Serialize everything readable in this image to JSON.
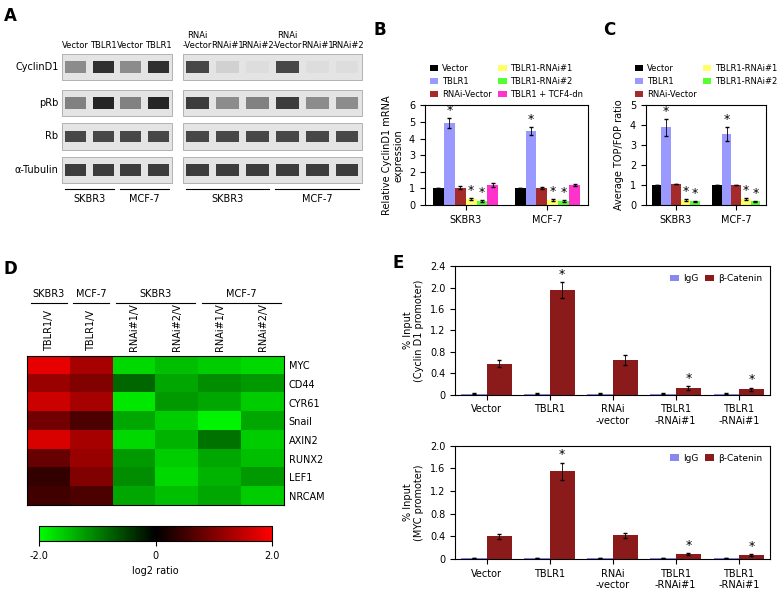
{
  "western_blot": {
    "panel": "A",
    "rows": [
      "CyclinD1",
      "pRb",
      "Rb",
      "α-Tubulin"
    ],
    "blots": [
      {
        "lanes": [
          "Vector",
          "TBLR1",
          "Vector",
          "TBLR1"
        ],
        "cell_lines": [
          "SKBR3",
          "MCF-7"
        ],
        "intensity": [
          [
            0.5,
            0.9,
            0.5,
            0.9
          ],
          [
            0.55,
            0.95,
            0.55,
            0.95
          ],
          [
            0.8,
            0.8,
            0.8,
            0.8
          ],
          [
            0.85,
            0.85,
            0.85,
            0.85
          ]
        ]
      },
      {
        "lanes": [
          "RNAi\n-Vector",
          "RNAi#1",
          "RNAi#2",
          "RNAi\n-Vector",
          "RNAi#1",
          "RNAi#2"
        ],
        "cell_lines": [
          "SKBR3",
          "MCF-7"
        ],
        "intensity": [
          [
            0.8,
            0.2,
            0.15,
            0.8,
            0.15,
            0.15
          ],
          [
            0.85,
            0.5,
            0.55,
            0.85,
            0.5,
            0.5
          ],
          [
            0.8,
            0.8,
            0.8,
            0.8,
            0.8,
            0.8
          ],
          [
            0.85,
            0.85,
            0.85,
            0.85,
            0.85,
            0.85
          ]
        ]
      }
    ]
  },
  "chart_data": [
    {
      "type": "bar",
      "panel": "B",
      "ylabel": "Relative CyclinD1 mRNA\nexpression",
      "categories": [
        "SKBR3",
        "MCF-7"
      ],
      "ylim": [
        0,
        6
      ],
      "yticks": [
        0,
        1,
        2,
        3,
        4,
        5,
        6
      ],
      "legend": "top",
      "series": [
        {
          "name": "Vector",
          "color": "#000000",
          "values": [
            1,
            1
          ],
          "errors": [
            0,
            0
          ],
          "annotations": [
            null,
            null
          ]
        },
        {
          "name": "TBLR1",
          "color": "#9999ff",
          "values": [
            4.95,
            4.45
          ],
          "errors": [
            0.3,
            0.25
          ],
          "annotations": [
            "*",
            "*"
          ]
        },
        {
          "name": "RNAi-Vector",
          "color": "#a52a2a",
          "values": [
            1.05,
            1.05
          ],
          "errors": [
            0.08,
            0.06
          ],
          "annotations": [
            null,
            null
          ]
        },
        {
          "name": "TBLR1-RNAi#1",
          "color": "#ffff66",
          "values": [
            0.35,
            0.3
          ],
          "errors": [
            0.05,
            0.04
          ],
          "annotations": [
            "*",
            "*"
          ]
        },
        {
          "name": "TBLR1-RNAi#2",
          "color": "#55ff33",
          "values": [
            0.25,
            0.25
          ],
          "errors": [
            0.04,
            0.04
          ],
          "annotations": [
            "*",
            "*"
          ]
        },
        {
          "name": "TBLR1 + TCF4-dn",
          "color": "#ff33cc",
          "values": [
            1.2,
            1.2
          ],
          "errors": [
            0.1,
            0.08
          ],
          "annotations": [
            null,
            null
          ]
        }
      ]
    },
    {
      "type": "bar",
      "panel": "C",
      "ylabel": "Average TOP/FOP ratio",
      "categories": [
        "SKBR3",
        "MCF-7"
      ],
      "ylim": [
        0,
        5
      ],
      "yticks": [
        0,
        1,
        2,
        3,
        4,
        5
      ],
      "legend": "top",
      "series": [
        {
          "name": "Vector",
          "color": "#000000",
          "values": [
            1,
            1
          ],
          "errors": [
            0,
            0
          ],
          "annotations": [
            null,
            null
          ]
        },
        {
          "name": "TBLR1",
          "color": "#9999ff",
          "values": [
            3.9,
            3.55
          ],
          "errors": [
            0.42,
            0.35
          ],
          "annotations": [
            "*",
            "*"
          ]
        },
        {
          "name": "RNAi-Vector",
          "color": "#a52a2a",
          "values": [
            1.05,
            1.0
          ],
          "errors": [
            0,
            0
          ],
          "annotations": [
            null,
            null
          ]
        },
        {
          "name": "TBLR1-RNAi#1",
          "color": "#ffff66",
          "values": [
            0.25,
            0.3
          ],
          "errors": [
            0.05,
            0.05
          ],
          "annotations": [
            "*",
            "*"
          ]
        },
        {
          "name": "TBLR1-RNAi#2",
          "color": "#55ff33",
          "values": [
            0.2,
            0.2
          ],
          "errors": [
            0.03,
            0.03
          ],
          "annotations": [
            "*",
            "*"
          ]
        }
      ]
    },
    {
      "type": "heatmap",
      "panel": "D",
      "rows": [
        "MYC",
        "CD44",
        "CYR61",
        "Snail",
        "AXIN2",
        "RUNX2",
        "LEF1",
        "NRCAM"
      ],
      "columns": [
        "TBLR1/V",
        "TBLR1/V",
        "RNAi#1/V",
        "RNAi#2/V",
        "RNAi#1/V",
        "RNAi#2/V"
      ],
      "column_groups": [
        {
          "label": "SKBR3",
          "span": 1
        },
        {
          "label": "MCF-7",
          "span": 1
        },
        {
          "label": "SKBR3",
          "span": 2
        },
        {
          "label": "MCF-7",
          "span": 2
        }
      ],
      "values": [
        [
          1.8,
          1.3,
          -1.7,
          -1.5,
          -1.6,
          -1.7
        ],
        [
          1.2,
          1.0,
          -0.8,
          -1.3,
          -1.1,
          -1.2
        ],
        [
          1.6,
          1.3,
          -1.8,
          -1.2,
          -1.3,
          -1.6
        ],
        [
          0.9,
          0.6,
          -1.3,
          -1.6,
          -1.9,
          -1.3
        ],
        [
          1.7,
          1.3,
          -1.7,
          -1.4,
          -0.9,
          -1.6
        ],
        [
          0.8,
          1.2,
          -1.2,
          -1.6,
          -1.3,
          -1.5
        ],
        [
          0.4,
          1.0,
          -1.1,
          -1.7,
          -1.4,
          -1.2
        ],
        [
          0.5,
          0.6,
          -1.3,
          -1.5,
          -1.3,
          -1.6
        ]
      ],
      "colors": [
        "#00ff00",
        "#000000",
        "#ff0000"
      ],
      "colorbar": {
        "label": "log2 ratio",
        "range": [
          -2.0,
          2.0
        ],
        "ticks": [
          {
            "value": -2,
            "label": "-2.0"
          },
          0,
          {
            "value": 2,
            "label": "2.0"
          }
        ]
      }
    },
    {
      "type": "bar",
      "panel": "E",
      "ylabel": "% Input\n(Cyclin D1 promoter)",
      "categories": [
        "Vector",
        "TBLR1",
        "RNAi\n-vector",
        "TBLR1\n-RNAi#1",
        "TBLR1\n-RNAi#1"
      ],
      "ylim": [
        0,
        2.4
      ],
      "yticks": [
        0,
        0.4,
        0.8,
        1.2,
        1.6,
        2.0,
        2.4
      ],
      "legend": "upper right",
      "series": [
        {
          "name": "IgG",
          "color": "#8888ee",
          "values": [
            0.02,
            0.02,
            0.02,
            0.02,
            0.02
          ],
          "errors": [
            0.005,
            0.005,
            0.005,
            0.005,
            0.005
          ],
          "annotations": [
            null,
            null,
            null,
            null,
            null
          ]
        },
        {
          "name": "β-Catenin",
          "color": "#8b1a1a",
          "values": [
            0.58,
            1.95,
            0.65,
            0.12,
            0.1
          ],
          "errors": [
            0.06,
            0.15,
            0.1,
            0.04,
            0.03
          ],
          "annotations": [
            null,
            "*",
            null,
            "*",
            "*"
          ]
        }
      ]
    },
    {
      "type": "bar",
      "ylabel": "% Input\n(MYC promoter)",
      "categories": [
        "Vector",
        "TBLR1",
        "RNAi\n-vector",
        "TBLR1\n-RNAi#1",
        "TBLR1\n-RNAi#1"
      ],
      "ylim": [
        0,
        2.0
      ],
      "yticks": [
        0,
        0.4,
        0.8,
        1.2,
        1.6,
        2.0
      ],
      "legend": "upper right",
      "series": [
        {
          "name": "IgG",
          "color": "#8888ee",
          "values": [
            0.02,
            0.02,
            0.02,
            0.02,
            0.02
          ],
          "errors": [
            0.005,
            0.005,
            0.005,
            0.005,
            0.005
          ],
          "annotations": [
            null,
            null,
            null,
            null,
            null
          ]
        },
        {
          "name": "β-Catenin",
          "color": "#8b1a1a",
          "values": [
            0.4,
            1.55,
            0.42,
            0.09,
            0.07
          ],
          "errors": [
            0.04,
            0.15,
            0.04,
            0.02,
            0.02
          ],
          "annotations": [
            null,
            "*",
            null,
            "*",
            "*"
          ]
        }
      ]
    }
  ]
}
